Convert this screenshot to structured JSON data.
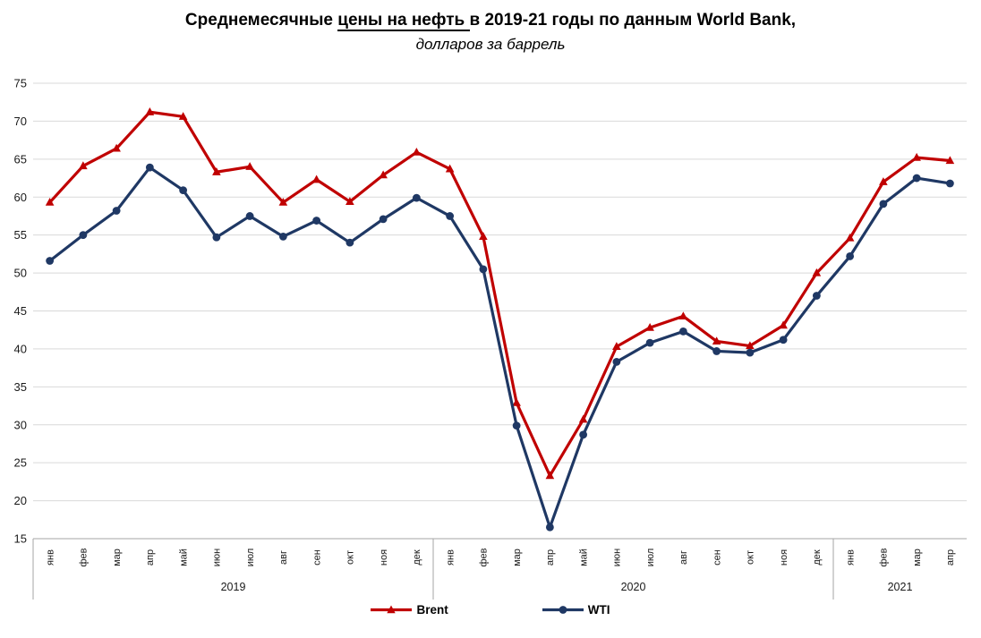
{
  "title": {
    "prefix": "Среднемесячные ",
    "underlined": "цены на нефть ",
    "suffix": "в 2019-21 годы по данным World Bank,",
    "subtitle": "долларов за баррель"
  },
  "colors": {
    "brent": "#C00000",
    "wti": "#1F3864",
    "gridline": "#D9D9D9",
    "axis": "#A6A6A6",
    "text": "#1a1a1a"
  },
  "chart_data": {
    "type": "line",
    "title": "Среднемесячные цены на нефть в 2019-21 годы по данным World Bank",
    "subtitle": "долларов за баррель",
    "y_axis": {
      "min": 15,
      "max": 75,
      "step": 5
    },
    "grid": "horizontal",
    "legend_position": "bottom",
    "year_groups": [
      {
        "label": "2019",
        "months": [
          "янв",
          "фев",
          "мар",
          "апр",
          "май",
          "июн",
          "июл",
          "авг",
          "сен",
          "окт",
          "ноя",
          "дек"
        ]
      },
      {
        "label": "2020",
        "months": [
          "янв",
          "фев",
          "мар",
          "апр",
          "май",
          "июн",
          "июл",
          "авг",
          "сен",
          "окт",
          "ноя",
          "дек"
        ]
      },
      {
        "label": "2021",
        "months": [
          "янв",
          "фев",
          "мар",
          "апр"
        ]
      }
    ],
    "series": [
      {
        "name": "Brent",
        "marker": "triangle",
        "color": "#C00000",
        "values": [
          59.3,
          64.1,
          66.4,
          71.2,
          70.6,
          63.3,
          64.0,
          59.3,
          62.3,
          59.4,
          62.9,
          65.9,
          63.7,
          54.8,
          32.9,
          23.3,
          30.7,
          40.3,
          42.8,
          44.3,
          41.0,
          40.4,
          43.1,
          50.0,
          54.6,
          62.0,
          65.2,
          64.8
        ]
      },
      {
        "name": "WTI",
        "marker": "circle",
        "color": "#1F3864",
        "values": [
          51.6,
          55.0,
          58.2,
          63.9,
          60.9,
          54.7,
          57.5,
          54.8,
          56.9,
          54.0,
          57.1,
          59.9,
          57.5,
          50.5,
          29.9,
          16.5,
          28.7,
          38.3,
          40.8,
          42.3,
          39.7,
          39.5,
          41.2,
          47.0,
          52.2,
          59.1,
          62.5,
          61.8
        ]
      }
    ]
  }
}
